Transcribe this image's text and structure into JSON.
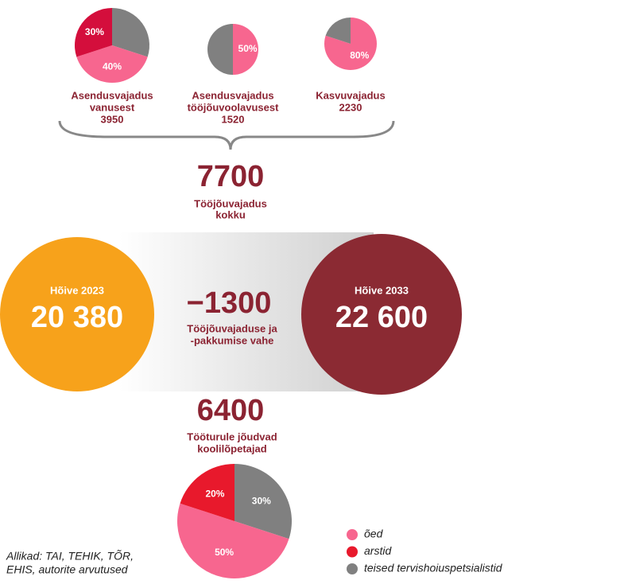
{
  "pies": [
    {
      "caption": [
        "Asendusvajadus",
        "vanusest",
        "3950"
      ],
      "slices": [
        {
          "value": 30,
          "color": "#808080"
        },
        {
          "value": 40,
          "value_label": "40%",
          "color": "#f7668f"
        },
        {
          "value": 30,
          "value_label": "30%",
          "color": "#d40e3c"
        }
      ]
    },
    {
      "caption": [
        "Asendusvajadus",
        "tööjõuvoolavusest",
        "1520"
      ],
      "slices": [
        {
          "value": 50,
          "value_label": "50%",
          "color": "#f7668f"
        },
        {
          "value": 50,
          "color": "#808080"
        }
      ]
    },
    {
      "caption": [
        "Kasvuvajadus",
        "2230"
      ],
      "slices": [
        {
          "value": 80,
          "value_label": "80%",
          "color": "#f7668f"
        },
        {
          "value": 20,
          "color": "#808080"
        }
      ]
    }
  ],
  "total": {
    "value": "7700",
    "caption": [
      "Tööjõuvajadus",
      "kokku"
    ]
  },
  "employment": [
    {
      "title": "Hõive 2023",
      "value": "20 380",
      "color": "#f7a21b"
    },
    {
      "title": "Hõive 2033",
      "value": "22 600",
      "color": "#8b2a33"
    }
  ],
  "gap": {
    "value": "−1300",
    "caption": [
      "Tööjõuvajaduse ja",
      "-pakkumise vahe"
    ]
  },
  "graduates": {
    "value": "6400",
    "caption": [
      "Tööturule jõudvad",
      "koolilõpetajad"
    ],
    "slices": [
      {
        "value": 30,
        "value_label": "30%",
        "color": "#808080"
      },
      {
        "value": 50,
        "value_label": "50%",
        "color": "#f7668f"
      },
      {
        "value": 20,
        "value_label": "20%",
        "color": "#e8192c"
      }
    ]
  },
  "legend": [
    {
      "label": "õed",
      "color": "#f7668f"
    },
    {
      "label": "arstid",
      "color": "#e8192c"
    },
    {
      "label": "teised tervishoiuspetsialistid",
      "color": "#808080"
    }
  ],
  "source": [
    "Allikad: TAI, TEHIK, TÕR,",
    "EHIS, autorite arvutused"
  ]
}
